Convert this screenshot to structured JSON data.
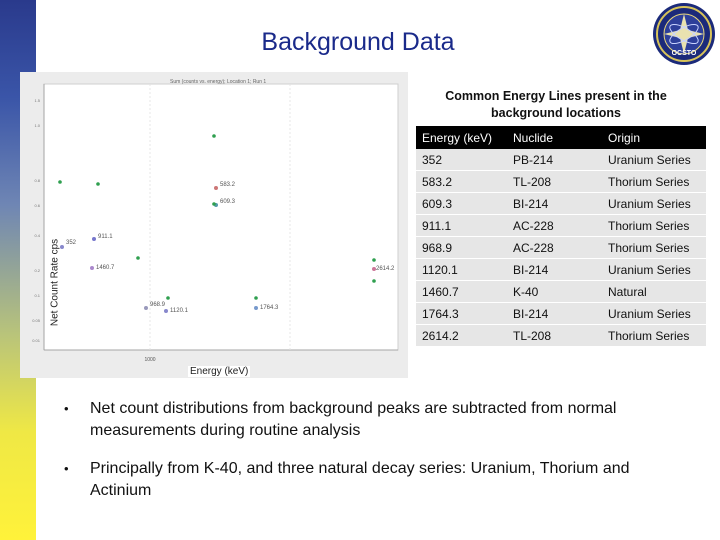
{
  "slide": {
    "title": "Background Data",
    "colors": {
      "title": "#1a2a8a",
      "sidebar_top": "#2a3a8c",
      "sidebar_bottom": "#fff23a",
      "table_header": "#000000",
      "table_row": "#e6e6e6"
    }
  },
  "seal": {
    "text": "OCSTO"
  },
  "figure": {
    "header_text": "Sum (counts vs. energy); Location 1; Run 1",
    "ylabel": "Net Count Rate cps",
    "xlabel": "Energy (keV)",
    "point_labels": [
      "352",
      "583.2",
      "609.3",
      "911.1",
      "968.9",
      "1120.1",
      "1460.7",
      "1764.3",
      "2614.2"
    ],
    "x_tick_label": "1000",
    "y_tick_labels": [
      "1.5",
      "1.0",
      "0.8",
      "0.6",
      "0.4",
      "0.2",
      "0.1",
      "0.05",
      "0.01"
    ]
  },
  "table": {
    "caption": "Common Energy Lines present in the background locations",
    "headers": [
      "Energy (keV)",
      "Nuclide",
      "Origin"
    ],
    "rows": [
      [
        "352",
        "PB-214",
        "Uranium Series"
      ],
      [
        "583.2",
        "TL-208",
        "Thorium Series"
      ],
      [
        "609.3",
        "BI-214",
        "Uranium Series"
      ],
      [
        "911.1",
        "AC-228",
        "Thorium Series"
      ],
      [
        "968.9",
        "AC-228",
        "Thorium Series"
      ],
      [
        "1120.1",
        "BI-214",
        "Uranium Series"
      ],
      [
        "1460.7",
        "K-40",
        "Natural"
      ],
      [
        "1764.3",
        "BI-214",
        "Uranium Series"
      ],
      [
        "2614.2",
        "TL-208",
        "Thorium Series"
      ]
    ]
  },
  "bullets": [
    "Net count distributions from background peaks are subtracted from normal measurements during routine analysis",
    "Principally from K-40, and three natural decay series: Uranium, Thorium and Actinium"
  ]
}
